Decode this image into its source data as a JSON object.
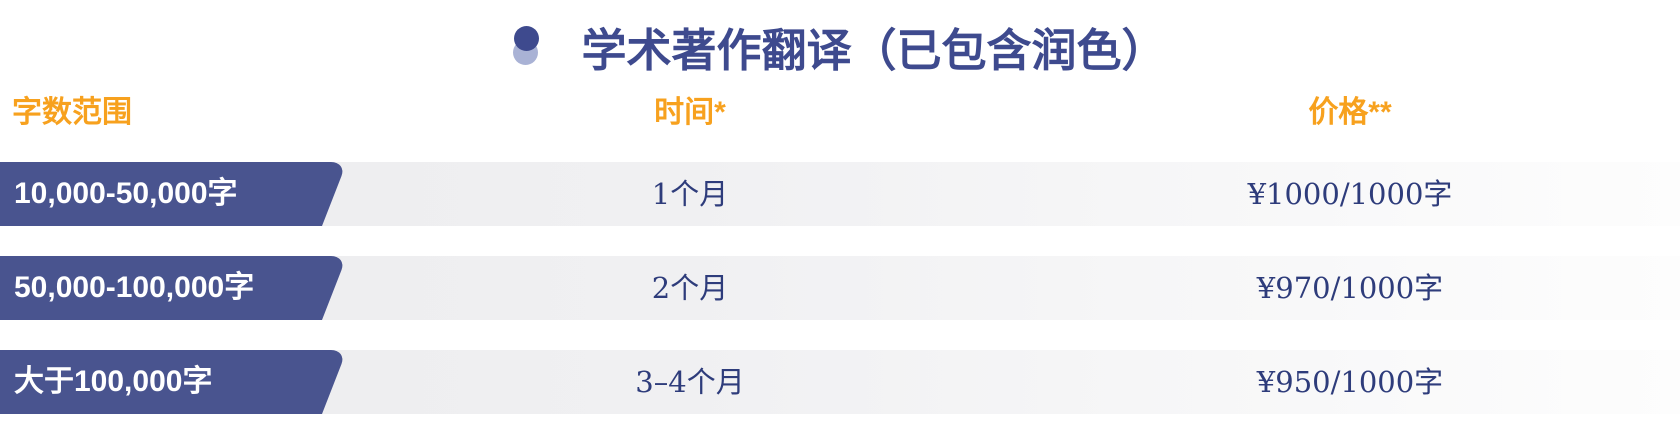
{
  "title": {
    "text": "学术著作翻译（已包含润色）",
    "bullet_icon": "double-circle-bullet"
  },
  "table": {
    "headers": [
      {
        "label": "字数范围"
      },
      {
        "label": "时间*"
      },
      {
        "label": "价格**"
      }
    ],
    "rows": [
      {
        "range": "10,000-50,000字",
        "time": "1个月",
        "price": "¥1000/1000字"
      },
      {
        "range": "50,000-100,000字",
        "time": "2个月",
        "price": "¥970/1000字"
      },
      {
        "range": "大于100,000字",
        "time": "3–4个月",
        "price": "¥950/1000字"
      }
    ]
  },
  "colors": {
    "title_blue": "#3e4a8e",
    "ribbon_blue": "#49548f",
    "bullet_light_blue": "#a9b2d5",
    "header_orange": "#f7a11e",
    "cell_text_blue": "#2e3c7b",
    "row_gradient_start": "#ececee",
    "row_gradient_end": "#fdfdfd"
  }
}
